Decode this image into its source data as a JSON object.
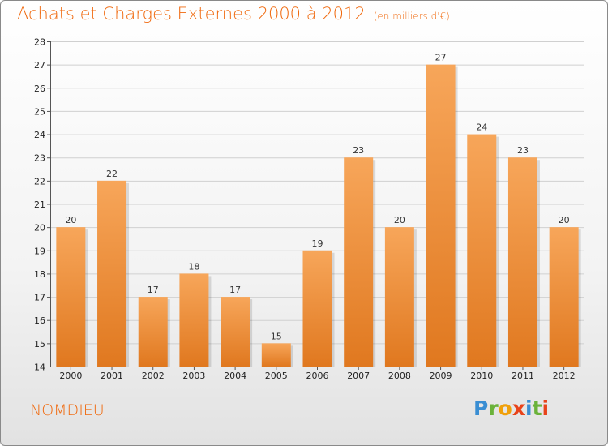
{
  "chart_data": {
    "type": "bar",
    "title": "Achats et Charges Externes 2000 à 2012",
    "subtitle": "(en milliers d'€)",
    "categories": [
      "2000",
      "2001",
      "2002",
      "2003",
      "2004",
      "2005",
      "2006",
      "2007",
      "2008",
      "2009",
      "2010",
      "2011",
      "2012"
    ],
    "values": [
      20,
      22,
      17,
      18,
      17,
      15,
      19,
      23,
      20,
      27,
      24,
      23,
      20
    ],
    "ylim": [
      14,
      28
    ],
    "yticks": [
      14,
      15,
      16,
      17,
      18,
      19,
      20,
      21,
      22,
      23,
      24,
      25,
      26,
      27,
      28
    ],
    "grid": true,
    "bar_color_light": "#f7a65a",
    "bar_color_dark": "#e0781f",
    "axis_color": "#555555",
    "grid_color": "#d0d0d0"
  },
  "footer": {
    "town": "NOMDIEU",
    "brand_letters": [
      "P",
      "r",
      "o",
      "x",
      "i",
      "t",
      "i"
    ]
  }
}
